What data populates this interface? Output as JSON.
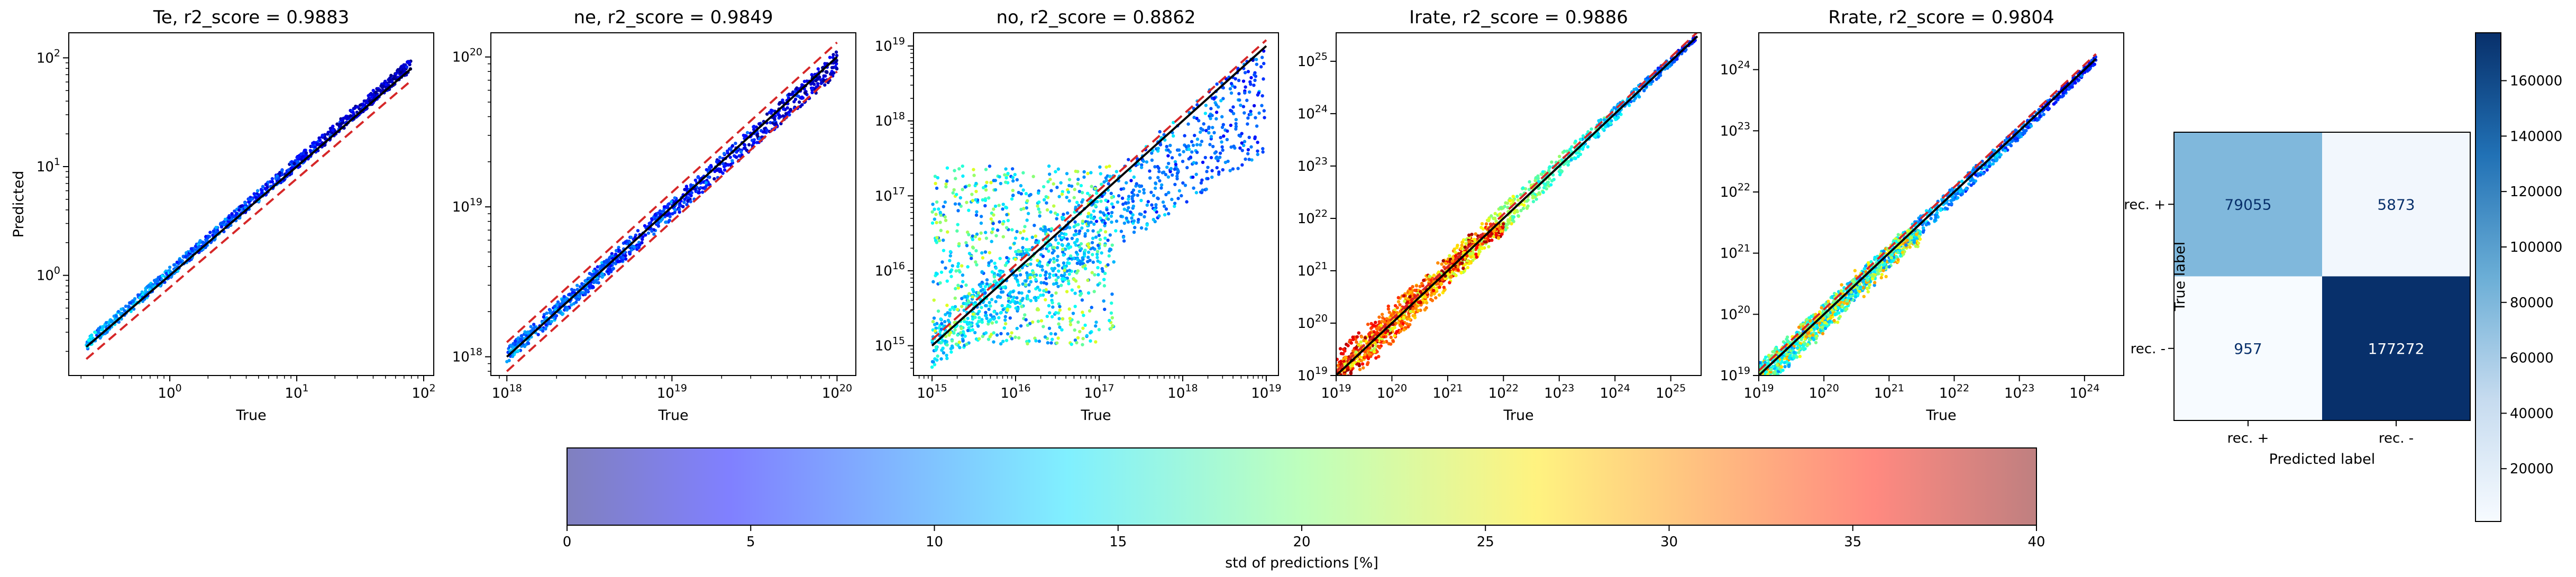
{
  "chart_data": [
    {
      "type": "scatter",
      "id": "te",
      "title": "Te, r2_score = 0.9883",
      "xlabel": "True",
      "ylabel": "Predicted",
      "xscale": "log",
      "yscale": "log",
      "xlim": [
        0.16,
        120
      ],
      "ylim": [
        0.12,
        170
      ],
      "xticks": [
        {
          "v": 1,
          "base": "10",
          "exp": "0"
        },
        {
          "v": 10,
          "base": "10",
          "exp": "1"
        },
        {
          "v": 100,
          "base": "10",
          "exp": "2"
        }
      ],
      "yticks": [
        {
          "v": 1,
          "base": "10",
          "exp": "0"
        },
        {
          "v": 10,
          "base": "10",
          "exp": "1"
        },
        {
          "v": 100,
          "base": "10",
          "exp": "2"
        }
      ],
      "x_range": [
        0.22,
        80
      ],
      "band_low": [
        -0.03,
        -0.02
      ],
      "band_high": [
        0.07,
        0.1
      ],
      "std_pct": [
        12,
        2
      ],
      "lines": [
        {
          "name": "identity",
          "color": "#000000",
          "dash": "",
          "x": [
            0.22,
            80
          ],
          "y": [
            0.22,
            80
          ]
        },
        {
          "name": "offset",
          "color": "#d62728",
          "dash": "18 10",
          "x": [
            0.22,
            80
          ],
          "y": [
            0.17,
            62
          ]
        }
      ]
    },
    {
      "type": "scatter",
      "id": "ne",
      "title": "ne, r2_score = 0.9849",
      "xlabel": "True",
      "ylabel": "",
      "xscale": "log",
      "yscale": "log",
      "xlim": [
        8e+17,
        1.3e+20
      ],
      "ylim": [
        7.5e+17,
        1.45e+20
      ],
      "xticks": [
        {
          "v": 1e+18,
          "base": "10",
          "exp": "18"
        },
        {
          "v": 1e+19,
          "base": "10",
          "exp": "19"
        },
        {
          "v": 1e+20,
          "base": "10",
          "exp": "20"
        }
      ],
      "yticks": [
        {
          "v": 1e+18,
          "base": "10",
          "exp": "18"
        },
        {
          "v": 1e+19,
          "base": "10",
          "exp": "19"
        },
        {
          "v": 1e+20,
          "base": "10",
          "exp": "20"
        }
      ],
      "x_range": [
        1e+18,
        1e+20
      ],
      "band_low": [
        -0.04,
        -0.12
      ],
      "band_high": [
        0.06,
        0.04
      ],
      "std_pct": [
        10,
        3
      ],
      "lines": [
        {
          "name": "identity",
          "color": "#000000",
          "dash": "",
          "x": [
            1e+18,
            1e+20
          ],
          "y": [
            1e+18,
            1e+20
          ]
        },
        {
          "name": "offset-upper",
          "color": "#d62728",
          "dash": "18 10",
          "x": [
            1e+18,
            1e+20
          ],
          "y": [
            1.25e+18,
            1.25e+20
          ]
        },
        {
          "name": "offset-lower",
          "color": "#d62728",
          "dash": "18 10",
          "x": [
            1e+18,
            1e+20
          ],
          "y": [
            8e+17,
            8e+19
          ]
        }
      ]
    },
    {
      "type": "scatter",
      "id": "no",
      "title": "no, r2_score = 0.8862",
      "xlabel": "True",
      "ylabel": "",
      "xscale": "log",
      "yscale": "log",
      "xlim": [
        600000000000000.0,
        1.4e+19
      ],
      "ylim": [
        400000000000000.0,
        1.5e+19
      ],
      "xticks": [
        {
          "v": 1000000000000000.0,
          "base": "10",
          "exp": "15"
        },
        {
          "v": 1e+16,
          "base": "10",
          "exp": "16"
        },
        {
          "v": 1e+17,
          "base": "10",
          "exp": "17"
        },
        {
          "v": 1e+18,
          "base": "10",
          "exp": "18"
        },
        {
          "v": 1e+19,
          "base": "10",
          "exp": "19"
        }
      ],
      "yticks": [
        {
          "v": 1000000000000000.0,
          "base": "10",
          "exp": "15"
        },
        {
          "v": 1e+16,
          "base": "10",
          "exp": "16"
        },
        {
          "v": 1e+17,
          "base": "10",
          "exp": "17"
        },
        {
          "v": 1e+18,
          "base": "10",
          "exp": "18"
        },
        {
          "v": 1e+19,
          "base": "10",
          "exp": "19"
        }
      ],
      "x_range": [
        1000000000000000.0,
        1e+19
      ],
      "cloud": {
        "x_range": [
          1000000000000000.0,
          1.5e+17
        ],
        "y_range": [
          1000000000000000.0,
          2.5e+17
        ]
      },
      "band_low": [
        -0.3,
        -1.4
      ],
      "band_high": [
        0.3,
        0.05
      ],
      "std_pct": [
        14,
        8
      ],
      "lines": [
        {
          "name": "identity",
          "color": "#000000",
          "dash": "",
          "x": [
            1000000000000000.0,
            1e+19
          ],
          "y": [
            1000000000000000.0,
            1e+19
          ]
        },
        {
          "name": "offset",
          "color": "#d62728",
          "dash": "18 10",
          "x": [
            1000000000000000.0,
            1e+19
          ],
          "y": [
            1200000000000000.0,
            1.2e+19
          ]
        }
      ]
    },
    {
      "type": "scatter",
      "id": "irate",
      "title": "Irate, r2_score = 0.9886",
      "xlabel": "True",
      "ylabel": "",
      "xscale": "log",
      "yscale": "log",
      "xlim": [
        1e+19,
        3.5e+25
      ],
      "ylim": [
        1e+19,
        3.5e+25
      ],
      "xticks": [
        {
          "v": 1e+19,
          "base": "10",
          "exp": "19"
        },
        {
          "v": 1e+20,
          "base": "10",
          "exp": "20"
        },
        {
          "v": 1e+21,
          "base": "10",
          "exp": "21"
        },
        {
          "v": 1e+22,
          "base": "10",
          "exp": "22"
        },
        {
          "v": 1e+23,
          "base": "10",
          "exp": "23"
        },
        {
          "v": 1e+24,
          "base": "10",
          "exp": "24"
        },
        {
          "v": 1e+25,
          "base": "10",
          "exp": "25"
        }
      ],
      "yticks": [
        {
          "v": 1e+19,
          "base": "10",
          "exp": "19"
        },
        {
          "v": 1e+20,
          "base": "10",
          "exp": "20"
        },
        {
          "v": 1e+21,
          "base": "10",
          "exp": "21"
        },
        {
          "v": 1e+22,
          "base": "10",
          "exp": "22"
        },
        {
          "v": 1e+23,
          "base": "10",
          "exp": "23"
        },
        {
          "v": 1e+24,
          "base": "10",
          "exp": "24"
        },
        {
          "v": 1e+25,
          "base": "10",
          "exp": "25"
        }
      ],
      "x_range": [
        1e+19,
        3e+25
      ],
      "cloud": {
        "x_range": [
          1e+19,
          1e+22
        ],
        "y_range": [
          1e+19,
          8e+21
        ]
      },
      "band_low": [
        -0.45,
        -0.05
      ],
      "band_high": [
        0.45,
        0.05
      ],
      "std_pct": [
        36,
        6
      ],
      "lines": [
        {
          "name": "identity",
          "color": "#000000",
          "dash": "",
          "x": [
            1e+19,
            3e+25
          ],
          "y": [
            1e+19,
            3e+25
          ]
        },
        {
          "name": "offset",
          "color": "#d62728",
          "dash": "18 10",
          "x": [
            1e+19,
            3e+25
          ],
          "y": [
            1.2e+19,
            3.6e+25
          ]
        }
      ]
    },
    {
      "type": "scatter",
      "id": "rrate",
      "title": "Rrate, r2_score = 0.9804",
      "xlabel": "True",
      "ylabel": "",
      "xscale": "log",
      "yscale": "log",
      "xlim": [
        1e+19,
        4e+24
      ],
      "ylim": [
        1e+19,
        4e+24
      ],
      "xticks": [
        {
          "v": 1e+19,
          "base": "10",
          "exp": "19"
        },
        {
          "v": 1e+20,
          "base": "10",
          "exp": "20"
        },
        {
          "v": 1e+21,
          "base": "10",
          "exp": "21"
        },
        {
          "v": 1e+22,
          "base": "10",
          "exp": "22"
        },
        {
          "v": 1e+23,
          "base": "10",
          "exp": "23"
        },
        {
          "v": 1e+24,
          "base": "10",
          "exp": "24"
        }
      ],
      "yticks": [
        {
          "v": 1e+19,
          "base": "10",
          "exp": "19"
        },
        {
          "v": 1e+20,
          "base": "10",
          "exp": "20"
        },
        {
          "v": 1e+21,
          "base": "10",
          "exp": "21"
        },
        {
          "v": 1e+22,
          "base": "10",
          "exp": "22"
        },
        {
          "v": 1e+23,
          "base": "10",
          "exp": "23"
        },
        {
          "v": 1e+24,
          "base": "10",
          "exp": "24"
        }
      ],
      "x_range": [
        1e+19,
        1.5e+24
      ],
      "cloud": {
        "x_range": [
          1e+19,
          3e+21
        ],
        "y_range": [
          1e+19,
          2.5e+21
        ]
      },
      "band_low": [
        -0.3,
        -0.08
      ],
      "band_high": [
        0.2,
        0.04
      ],
      "std_pct": [
        18,
        6
      ],
      "lines": [
        {
          "name": "identity",
          "color": "#000000",
          "dash": "",
          "x": [
            1e+19,
            1.5e+24
          ],
          "y": [
            1e+19,
            1.5e+24
          ]
        },
        {
          "name": "offset",
          "color": "#d62728",
          "dash": "18 10",
          "x": [
            1e+19,
            1.5e+24
          ],
          "y": [
            1.2e+19,
            1.8e+24
          ]
        }
      ]
    },
    {
      "type": "heatmap",
      "id": "confusion",
      "title": "",
      "xlabel": "Predicted label",
      "ylabel": "True label",
      "x_categories": [
        "rec. +",
        "rec. -"
      ],
      "y_categories": [
        "rec. +",
        "rec. -"
      ],
      "values": [
        [
          79055,
          5873
        ],
        [
          957,
          177272
        ]
      ],
      "colormap": "Blues",
      "colorbar": {
        "vmin": 957,
        "vmax": 177272,
        "ticks": [
          20000,
          40000,
          60000,
          80000,
          100000,
          120000,
          140000,
          160000
        ],
        "tick_labels": [
          "20000",
          "40000",
          "60000",
          "80000",
          "100000",
          "120000",
          "140000",
          "160000"
        ]
      }
    },
    {
      "type": "colorbar",
      "id": "std-colorbar",
      "label": "std of predictions [%]",
      "colormap": "jet",
      "range": [
        0,
        40
      ],
      "ticks": [
        0,
        5,
        10,
        15,
        20,
        25,
        30,
        35,
        40
      ],
      "tick_labels": [
        "0",
        "5",
        "10",
        "15",
        "20",
        "25",
        "30",
        "35",
        "40"
      ]
    }
  ]
}
